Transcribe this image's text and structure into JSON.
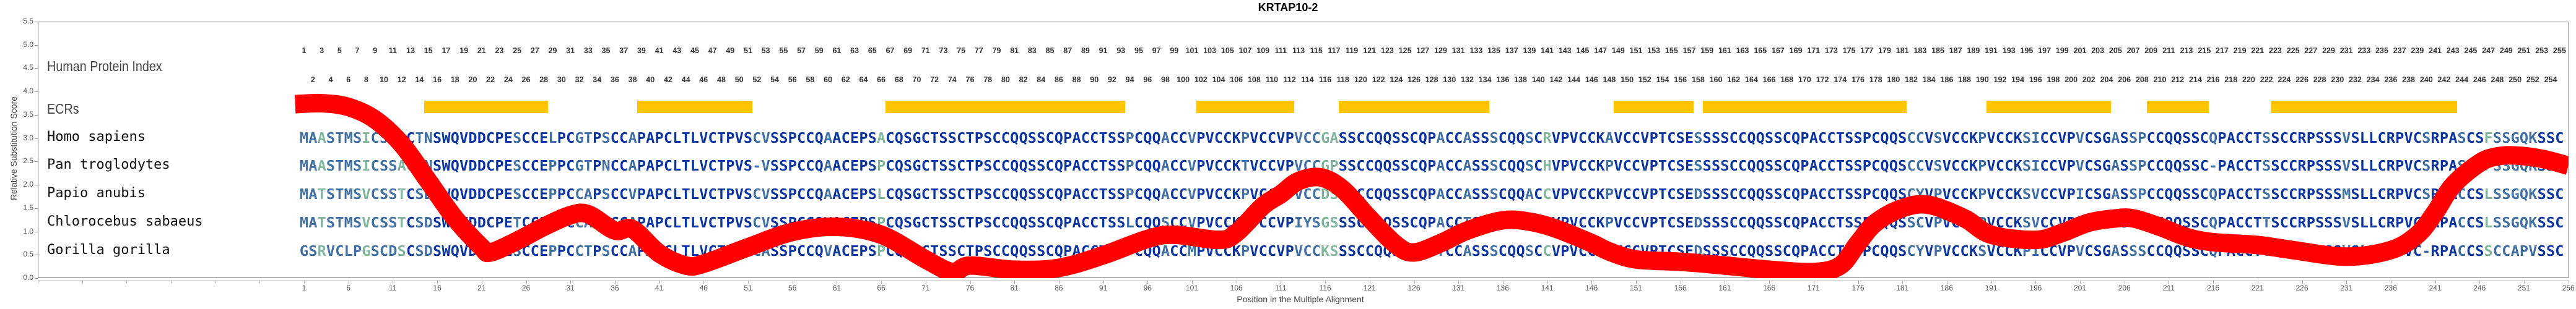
{
  "chart_data": {
    "type": "line",
    "title": "KRTAP10-2",
    "xlabel": "Position in the Multiple Alignment",
    "ylabel": "Relative Substitution Score",
    "xlim": [
      -29,
      256
    ],
    "ylim": [
      0,
      5.5
    ],
    "y_ticks": [
      "0.0",
      "0.5",
      "1.0",
      "1.5",
      "2.0",
      "2.5",
      "3.0",
      "3.5",
      "4.0",
      "4.5",
      "5.0",
      "5.5"
    ],
    "x_ticks": [
      1,
      6,
      11,
      16,
      21,
      26,
      31,
      36,
      41,
      46,
      51,
      56,
      61,
      66,
      71,
      76,
      81,
      86,
      91,
      96,
      101,
      106,
      111,
      116,
      121,
      126,
      131,
      136,
      141,
      146,
      151,
      156,
      161,
      166,
      171,
      176,
      181,
      186,
      191,
      196,
      201,
      206,
      211,
      216,
      221,
      226,
      231,
      236,
      241,
      246,
      251,
      256
    ],
    "series": [
      {
        "name": "Relative Substitution Score",
        "color": "#ff0000",
        "x": [
          0,
          3,
          6,
          9,
          12,
          15,
          18,
          21,
          22,
          25,
          28,
          31,
          33,
          36,
          38,
          41,
          44,
          46,
          51,
          56,
          61,
          66,
          71,
          74,
          76,
          81,
          86,
          91,
          96,
          99,
          104,
          106,
          109,
          111,
          113,
          115.5,
          118,
          121,
          124,
          126,
          129,
          132,
          136,
          139,
          142,
          146,
          148,
          151,
          156,
          161,
          166,
          171,
          174,
          176,
          178,
          181,
          184,
          188,
          191,
          196,
          199,
          202,
          205,
          207,
          210,
          213,
          216,
          221,
          225,
          231,
          236,
          239,
          241,
          243,
          246,
          248,
          250,
          253,
          256
        ],
        "y": [
          3.73,
          3.75,
          3.67,
          3.4,
          2.87,
          2.08,
          1.28,
          0.66,
          0.55,
          0.8,
          1.1,
          1.35,
          1.37,
          1.02,
          1.05,
          0.53,
          0.27,
          0.31,
          0.66,
          0.99,
          1.1,
          0.93,
          0.4,
          0.13,
          0.27,
          0.18,
          0.22,
          0.49,
          0.84,
          0.93,
          0.82,
          0.97,
          1.55,
          1.8,
          2.08,
          2.16,
          1.9,
          1.28,
          0.71,
          0.55,
          0.75,
          1.02,
          1.24,
          1.21,
          1.06,
          0.75,
          0.57,
          0.4,
          0.35,
          0.27,
          0.18,
          0.13,
          0.27,
          0.75,
          1.19,
          1.5,
          1.57,
          1.28,
          0.93,
          0.82,
          0.97,
          1.19,
          1.28,
          1.28,
          1.1,
          0.88,
          0.77,
          0.71,
          0.6,
          0.46,
          0.6,
          0.93,
          1.41,
          1.99,
          2.47,
          2.61,
          2.63,
          2.56,
          2.41
        ]
      }
    ]
  },
  "labels": {
    "human_protein_index": "Human Protein Index",
    "ecrs": "ECRs"
  },
  "human_protein_index": {
    "start": 1,
    "end": 255
  },
  "ecrs": {
    "color": "#ffc600",
    "regions": [
      [
        15,
        28
      ],
      [
        39,
        51
      ],
      [
        67,
        93
      ],
      [
        102,
        112
      ],
      [
        118,
        134
      ],
      [
        149,
        157
      ],
      [
        159,
        181
      ],
      [
        191,
        204
      ],
      [
        209,
        215
      ],
      [
        223,
        243
      ]
    ]
  },
  "residue_colors": {
    "conserved": "#0a35a0",
    "partial": "#3f6fa3",
    "variable": "#80b79c",
    "gap": "#3f6fa3"
  },
  "alignment": [
    {
      "species": "Homo sapiens",
      "sequence": "MAASTMSICSSACTNSWQVDDCPESCCELPCGTPSCCAPAPCLTLVCTPVSCVSSPCCQAACEPSACQSGCTSSCTPSCCQQSSCQPACCTSSPCQQACCVPVCCKPVCCVPVCCGASSCCQQSSCQPACCASSSCQQSCRVPVCCKAVCCVPTCSESSSSCCQQSSCQPACCTSSPCQQSCCVSVCCKPVCCKSICCVPVCSGASSPCCQQSSCQPACCTSSCCRPSSSVSLLCRPVCSRPASCSFSSGQKSSC"
    },
    {
      "species": "Pan troglodytes",
      "sequence": "MAASTMSICSSACTNSWQVDDCPESCCEPPCGTPNCCAPAPCLTLVCTPVS-VSSPCCQAACEPSPCQSGCTSSCTPSCCQQSSCQPACCTSSPCQQACCVPVCCKTVCCVPVCCGPSSCCQQSSCQPACCASSSCQQSCHVPVCCKPVCCVPTCSESSSSCCQQSSCQPACCTSSPCQQSCCVSVCCKPVCCKSICCVPVCSGASSPCCQQSSC-PACCTSSCCRPSSSVSLLCRPVCSRPASCSFSSGQKSSC"
    },
    {
      "species": "Papio anubis",
      "sequence": "MATSTMSVCSSTCSDSWQVDDCPESCCEPPCCAPSCCVPAPCLTLVCTPVSCVSSPCCQAACEPSLCQSGCTSSCTPSCCQQSSCQPACCTSSPCQQACCVPVCCKPVCCVPVCCDSSSCCQQSSCQPACCASSSCQQACCVPVCCKPVCCVPTCSEDSSSCCQQSSCQPACCTSSPCQQSCYVPVCCKPVCCKSVCCVPICSGASSPCCQQSSCQPACCTSSCCRPSSSMSLLCRPVCSRPACCSLSSGQKSSC"
    },
    {
      "species": "Chlorocebus sabaeus",
      "sequence": "MATSTMSVCSSTCSDSWQVDDCPETCCEPPCCAPSCCAPAPCLTLVCTPVSCVSSPCCQVACEPSPCQSGCTSSCTPSCCQQSSCQPACCTSSLCQQSCCVPVCCKPVCCVPIYSGSSSCCQQSSCQPACCTSSPCQQSCCVPVCCKPVCCVPTCSEDSSSCCQQSSCQPACCTSSPCQQSSCVPVCCKPVCCKSVCCVPVCSGGSTSCCQQSSCQPACCTTSCCRPSSSVSLLCRPVCSRPACCSLSSGQKSSC"
    },
    {
      "species": "Gorilla gorilla",
      "sequence": "GSRVCLPGSCDSCSDSWQVDDCPESCCEPPCCTPSCCAPAPCLTLVCTPVSCASSPCCQVACEPSPCQSGCTSSCTPSCCQQSSCQPACCTSSPCQQACCMPVCCKPVCCVPVCCKSSSCCQQSSCQPTCCASSSCQQSCCVPVCCKPVCCVPTCSEDSSSCCQQSSCQPACCTSSPCQQSCYVPVCCKSVCCKPICCVPVCSGASSSCCQQSSCQPACCTTSCCRPSSSVSLLCRPVC-RPACCSSCCAPVSSC"
    }
  ]
}
